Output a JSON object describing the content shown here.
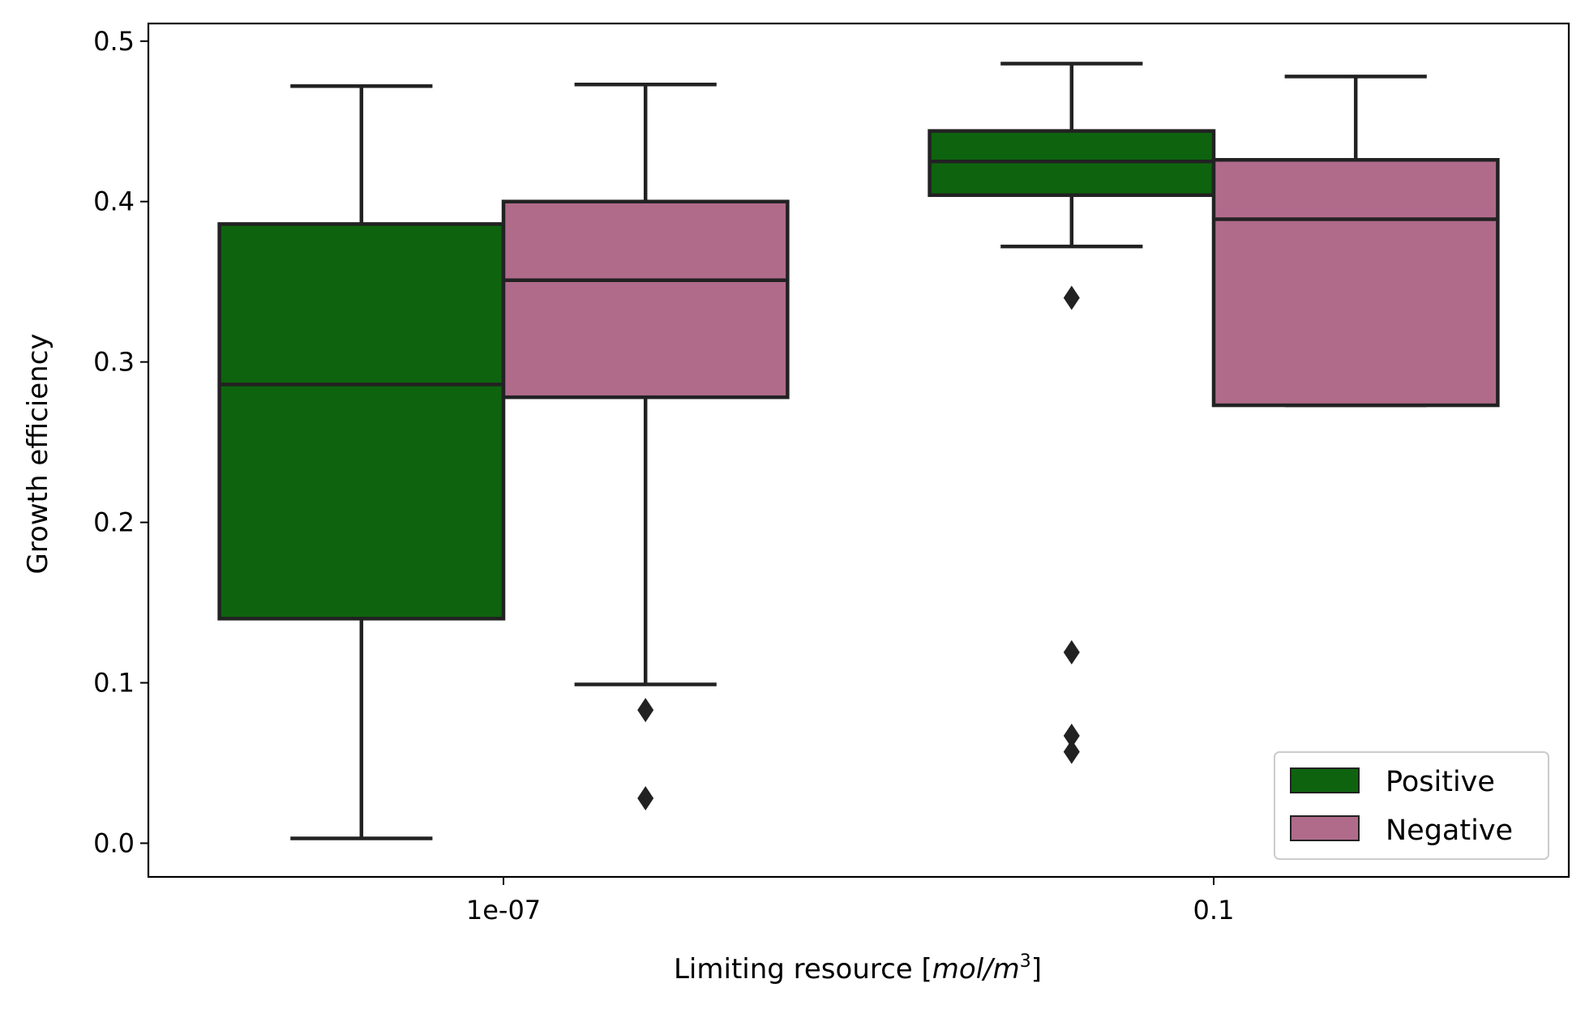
{
  "chart_data": {
    "type": "box",
    "xlabel": "Limiting resource [",
    "xlabel_unit": "mol/m",
    "xlabel_sup": "3",
    "xlabel_end": "]",
    "ylabel": "Growth efficiency",
    "ylim": [
      -0.021,
      0.511
    ],
    "yticks": [
      "0.0",
      "0.1",
      "0.2",
      "0.3",
      "0.4",
      "0.5"
    ],
    "categories": [
      "1e-07",
      "0.1"
    ],
    "legend_position": "lower-right",
    "series": [
      {
        "name": "Positive",
        "color": "#0e640e",
        "boxes": [
          {
            "whisker_low": 0.003,
            "q1": 0.14,
            "median": 0.286,
            "q3": 0.386,
            "whisker_high": 0.472,
            "outliers": []
          },
          {
            "whisker_low": 0.372,
            "q1": 0.404,
            "median": 0.425,
            "q3": 0.444,
            "whisker_high": 0.486,
            "outliers": [
              0.34,
              0.119,
              0.067,
              0.057
            ]
          }
        ]
      },
      {
        "name": "Negative",
        "color": "#b06b8b",
        "boxes": [
          {
            "whisker_low": 0.099,
            "q1": 0.278,
            "median": 0.351,
            "q3": 0.4,
            "whisker_high": 0.473,
            "outliers": [
              0.083,
              0.028
            ]
          },
          {
            "whisker_low": 0.273,
            "q1": 0.273,
            "median": 0.389,
            "q3": 0.426,
            "whisker_high": 0.478,
            "outliers": []
          }
        ]
      }
    ]
  }
}
